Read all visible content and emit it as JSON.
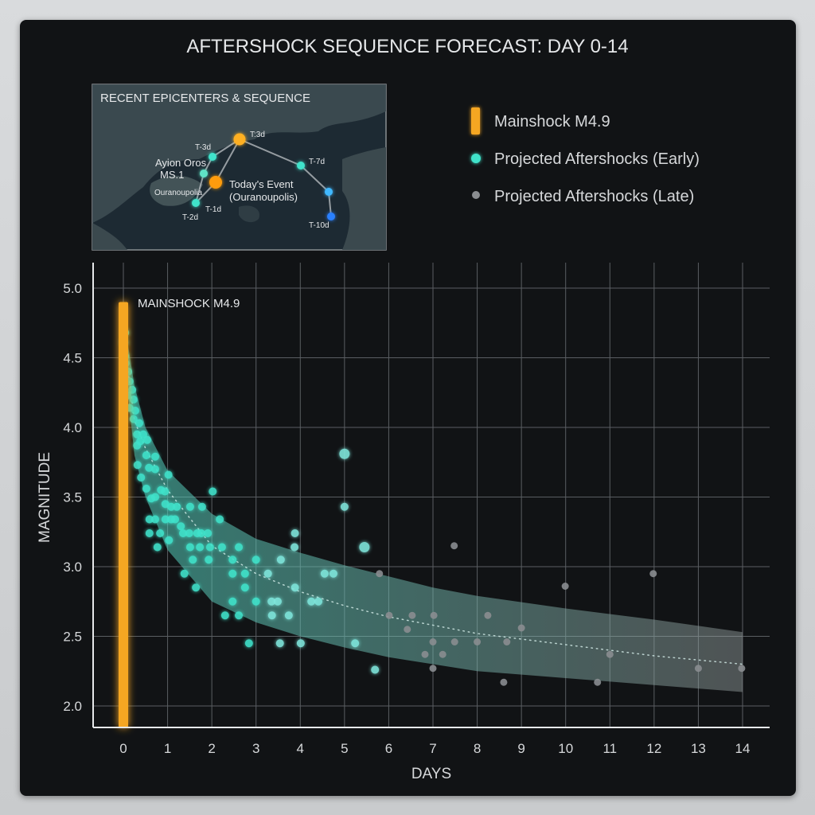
{
  "chart_data": {
    "type": "scatter",
    "title": "AFTERSHOCK SEQUENCE FORECAST: DAY 0-14",
    "xlabel": "DAYS",
    "ylabel": "MAGNITUDE",
    "xlim": [
      0,
      14
    ],
    "ylim": [
      2.0,
      5.0
    ],
    "x_ticks": [
      "0",
      "1",
      "2",
      "3",
      "4",
      "5",
      "6",
      "7",
      "8",
      "9",
      "10",
      "11",
      "12",
      "13",
      "14"
    ],
    "y_ticks": [
      "2.0",
      "2.5",
      "3.0",
      "3.5",
      "4.0",
      "4.5",
      "5.0"
    ],
    "grid": true,
    "legend_position": "top-right",
    "legend": [
      {
        "label": "Mainshock M4.9",
        "marker": "bar",
        "color": "#f5a623"
      },
      {
        "label": "Projected Aftershocks (Early)",
        "marker": "dot",
        "color": "#3fe3cb"
      },
      {
        "label": "Projected Aftershocks (Late)",
        "marker": "dot",
        "color": "#8a8d90"
      }
    ],
    "mainshock": {
      "label": "MAINSHOCK M4.9",
      "day": 0,
      "magnitude": 4.9,
      "color": "#f5a623"
    },
    "forecast_band": {
      "x": [
        0.05,
        0.25,
        0.5,
        1,
        2,
        3,
        4,
        5,
        6,
        7,
        8,
        10,
        12,
        14
      ],
      "upper": [
        4.7,
        4.3,
        4.0,
        3.69,
        3.38,
        3.2,
        3.1,
        3.01,
        2.93,
        2.85,
        2.79,
        2.7,
        2.62,
        2.53
      ],
      "mean": [
        4.55,
        4.05,
        3.85,
        3.55,
        3.15,
        2.95,
        2.82,
        2.72,
        2.64,
        2.58,
        2.52,
        2.44,
        2.36,
        2.3
      ],
      "lower": [
        4.4,
        3.8,
        3.5,
        3.12,
        2.75,
        2.6,
        2.5,
        2.42,
        2.35,
        2.3,
        2.25,
        2.2,
        2.15,
        2.1
      ],
      "color": "#6fd6c6"
    },
    "series": [
      {
        "name": "Projected Aftershocks (Early)",
        "color": "#3fe3cb",
        "points": [
          [
            0.04,
            4.68
          ],
          [
            0.02,
            4.61
          ],
          [
            0.04,
            4.51
          ],
          [
            0.05,
            4.46
          ],
          [
            0.11,
            4.4
          ],
          [
            0.14,
            4.33
          ],
          [
            0.2,
            4.27
          ],
          [
            0.09,
            4.23
          ],
          [
            0.23,
            4.2
          ],
          [
            0.14,
            4.14
          ],
          [
            0.27,
            4.12
          ],
          [
            0.23,
            4.06
          ],
          [
            0.36,
            4.03
          ],
          [
            0.45,
            3.95
          ],
          [
            0.31,
            3.95
          ],
          [
            0.38,
            3.9
          ],
          [
            0.54,
            3.91
          ],
          [
            0.31,
            3.87
          ],
          [
            0.52,
            3.8
          ],
          [
            0.72,
            3.79
          ],
          [
            0.32,
            3.73
          ],
          [
            0.58,
            3.71
          ],
          [
            0.72,
            3.7
          ],
          [
            0.4,
            3.64
          ],
          [
            1.02,
            3.66
          ],
          [
            0.52,
            3.56
          ],
          [
            0.85,
            3.55
          ],
          [
            0.94,
            3.54
          ],
          [
            0.63,
            3.49
          ],
          [
            0.72,
            3.5
          ],
          [
            0.95,
            3.45
          ],
          [
            1.08,
            3.43
          ],
          [
            1.21,
            3.43
          ],
          [
            1.51,
            3.43
          ],
          [
            1.78,
            3.43
          ],
          [
            2.02,
            3.54
          ],
          [
            0.59,
            3.34
          ],
          [
            0.72,
            3.34
          ],
          [
            0.95,
            3.34
          ],
          [
            1.08,
            3.34
          ],
          [
            1.17,
            3.34
          ],
          [
            2.18,
            3.34
          ],
          [
            1.3,
            3.29
          ],
          [
            1.35,
            3.24
          ],
          [
            1.49,
            3.24
          ],
          [
            1.67,
            3.24
          ],
          [
            1.76,
            3.24
          ],
          [
            1.91,
            3.24
          ],
          [
            0.59,
            3.24
          ],
          [
            0.83,
            3.24
          ],
          [
            1.03,
            3.19
          ],
          [
            0.77,
            3.14
          ],
          [
            1.51,
            3.14
          ],
          [
            1.73,
            3.14
          ],
          [
            1.96,
            3.14
          ],
          [
            2.23,
            3.14
          ],
          [
            2.61,
            3.14
          ],
          [
            3.87,
            3.14
          ],
          [
            3.88,
            3.24
          ],
          [
            5.45,
            3.14
          ],
          [
            5.0,
            3.81
          ],
          [
            5.0,
            3.43
          ],
          [
            3.0,
            3.05
          ],
          [
            3.56,
            3.05
          ],
          [
            2.47,
            3.05
          ],
          [
            1.93,
            3.05
          ],
          [
            1.57,
            3.05
          ],
          [
            1.38,
            2.95
          ],
          [
            2.47,
            2.95
          ],
          [
            2.75,
            2.95
          ],
          [
            3.27,
            2.95
          ],
          [
            4.55,
            2.95
          ],
          [
            4.75,
            2.95
          ],
          [
            1.64,
            2.85
          ],
          [
            2.75,
            2.85
          ],
          [
            3.88,
            2.85
          ],
          [
            2.47,
            2.75
          ],
          [
            3.0,
            2.75
          ],
          [
            3.35,
            2.75
          ],
          [
            3.49,
            2.75
          ],
          [
            4.25,
            2.75
          ],
          [
            4.41,
            2.75
          ],
          [
            2.3,
            2.65
          ],
          [
            2.61,
            2.65
          ],
          [
            3.36,
            2.65
          ],
          [
            3.74,
            2.65
          ],
          [
            2.84,
            2.45
          ],
          [
            3.54,
            2.45
          ],
          [
            4.01,
            2.45
          ],
          [
            5.24,
            2.45
          ],
          [
            5.69,
            2.26
          ]
        ]
      },
      {
        "name": "Projected Aftershocks (Late)",
        "color": "#8a8d90",
        "points": [
          [
            5.79,
            2.95
          ],
          [
            6.01,
            2.65
          ],
          [
            6.53,
            2.65
          ],
          [
            6.42,
            2.55
          ],
          [
            7.48,
            3.15
          ],
          [
            7.02,
            2.65
          ],
          [
            8.24,
            2.65
          ],
          [
            7.0,
            2.46
          ],
          [
            7.49,
            2.46
          ],
          [
            8.0,
            2.46
          ],
          [
            8.67,
            2.46
          ],
          [
            6.82,
            2.37
          ],
          [
            7.22,
            2.37
          ],
          [
            9.0,
            2.56
          ],
          [
            7.0,
            2.27
          ],
          [
            8.6,
            2.17
          ],
          [
            9.99,
            2.86
          ],
          [
            11.0,
            2.37
          ],
          [
            10.72,
            2.17
          ],
          [
            11.98,
            2.95
          ],
          [
            13.0,
            2.27
          ],
          [
            13.98,
            2.27
          ]
        ]
      }
    ]
  },
  "inset_map": {
    "title": "RECENT EPICENTERS & SEQUENCE",
    "labels": {
      "t3d_north": "T:3d",
      "t3d_west": "T-3d",
      "ayion_oros": "Ayion Oros",
      "ms": "MS.1",
      "ouranoupolis": "Ouranoupolia",
      "todays_event": "Today's Event",
      "todays_event_place": "(Ouranoupolis)",
      "t1d": "T-1d",
      "t2d": "T-2d",
      "t7d": "T-7d",
      "t10d": "T-10d"
    },
    "colors": {
      "major": "#ffb020",
      "recent": "#3fe3cb",
      "older": "#3a8cff"
    }
  }
}
